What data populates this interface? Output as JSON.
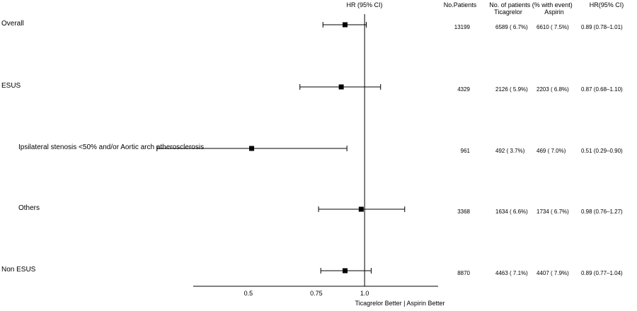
{
  "chart_data": {
    "type": "forest",
    "headers": {
      "plot": "HR (95% CI)",
      "n_patients": "No.Patients",
      "events": "No. of patients (% with event)",
      "group1": "Ticagrelor",
      "group2": "Aspirin",
      "hr": "HR(95% CI)"
    },
    "x_scale": "log",
    "reference_line": 1.0,
    "x_ticks": [
      {
        "value": 0.5,
        "label": "0.5"
      },
      {
        "value": 0.75,
        "label": "0.75"
      },
      {
        "value": 1.0,
        "label": "1.0"
      }
    ],
    "xlim": [
      0.36,
      1.55
    ],
    "x_caption": "Ticagrelor Better  |  Aspirin Better",
    "rows": [
      {
        "label": "Overall",
        "indent": false,
        "hr": 0.89,
        "lo": 0.78,
        "hi": 1.01,
        "n": "13199",
        "ticagrelor": "6589 ( 6.7%)",
        "aspirin": "6610 ( 7.5%)",
        "hr_text": "0.89 (0.78–1.01)"
      },
      {
        "label": "ESUS",
        "indent": false,
        "hr": 0.87,
        "lo": 0.68,
        "hi": 1.1,
        "n": "4329",
        "ticagrelor": "2126 ( 5.9%)",
        "aspirin": "2203 ( 6.8%)",
        "hr_text": "0.87 (0.68–1.10)"
      },
      {
        "label": "Ipsilateral stenosis <50% and/or Aortic arch atherosclerosis",
        "indent": true,
        "hr": 0.51,
        "lo": 0.29,
        "hi": 0.9,
        "n": "961",
        "ticagrelor": "492 ( 3.7%)",
        "aspirin": "469 ( 7.0%)",
        "hr_text": "0.51 (0.29–0.90)"
      },
      {
        "label": "Others",
        "indent": true,
        "hr": 0.98,
        "lo": 0.76,
        "hi": 1.27,
        "n": "3368",
        "ticagrelor": "1634 ( 6.6%)",
        "aspirin": "1734 ( 6.7%)",
        "hr_text": "0.98 (0.76–1.27)"
      },
      {
        "label": "Non ESUS",
        "indent": false,
        "hr": 0.89,
        "lo": 0.77,
        "hi": 1.04,
        "n": "8870",
        "ticagrelor": "4463 ( 7.1%)",
        "aspirin": "4407 ( 7.9%)",
        "hr_text": "0.89 (0.77–1.04)"
      }
    ]
  }
}
